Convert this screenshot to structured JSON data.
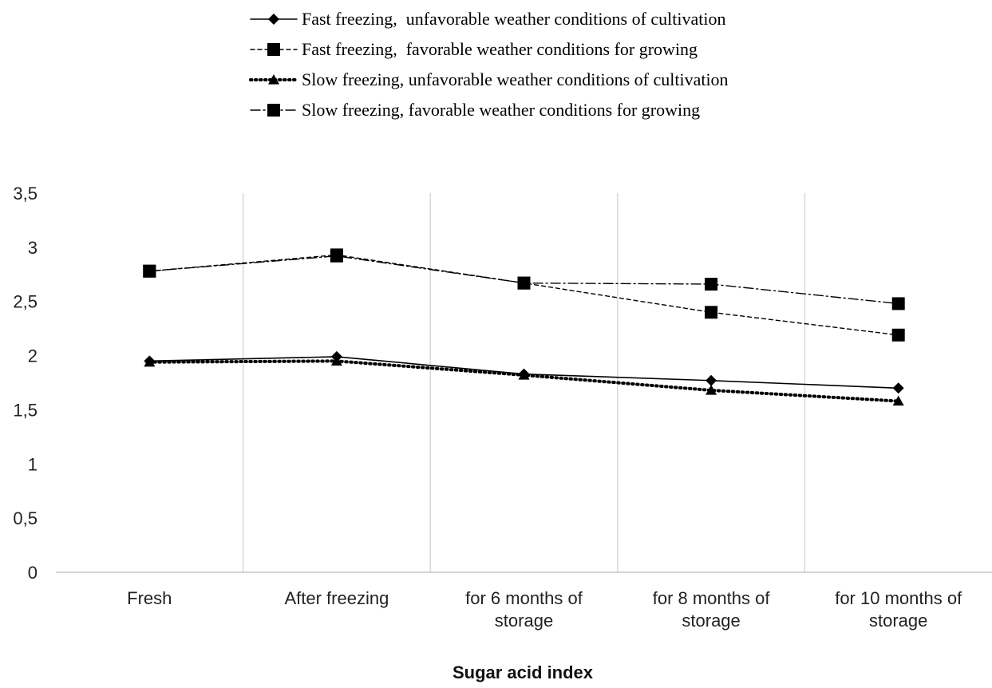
{
  "chart_data": {
    "type": "line",
    "title": "",
    "xlabel": "Sugar acid index",
    "ylabel": "",
    "ylim": [
      0,
      3.5
    ],
    "yticks": [
      "0",
      "0,5",
      "1",
      "1,5",
      "2",
      "2,5",
      "3",
      "3,5"
    ],
    "categories": [
      [
        "Fresh"
      ],
      [
        "After freezing"
      ],
      [
        "for 6 months of",
        "storage"
      ],
      [
        "for 8 months of",
        "storage"
      ],
      [
        "for 10 months of",
        "storage"
      ]
    ],
    "grid": "vertical",
    "legend_position": "top",
    "series": [
      {
        "name": "Fast freezing,  unfavorable weather conditions of cultivation",
        "values": [
          1.95,
          1.99,
          1.83,
          1.77,
          1.7
        ],
        "line": "solid",
        "marker": "diamond"
      },
      {
        "name": "Fast freezing,  favorable weather conditions for growing",
        "values": [
          2.78,
          2.93,
          2.67,
          2.4,
          2.19
        ],
        "line": "dashed",
        "marker": "square"
      },
      {
        "name": "Slow freezing, unfavorable weather conditions of cultivation",
        "values": [
          1.94,
          1.95,
          1.82,
          1.68,
          1.58
        ],
        "line": "dotted",
        "marker": "triangle"
      },
      {
        "name": "Slow freezing, favorable weather conditions for growing",
        "values": [
          2.78,
          2.92,
          2.67,
          2.66,
          2.48
        ],
        "line": "dashdot",
        "marker": "square"
      }
    ]
  }
}
